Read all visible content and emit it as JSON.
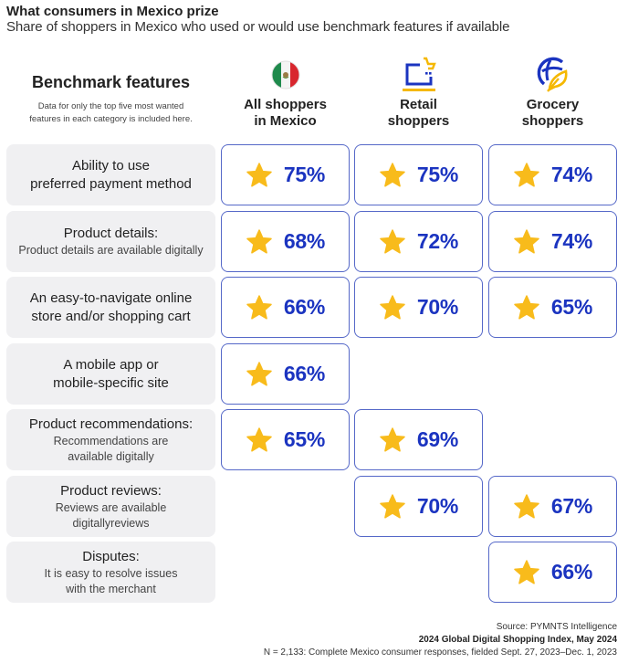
{
  "header": {
    "title": "What consumers in Mexico prize",
    "subtitle": "Share of shoppers in Mexico who used or would use benchmark features if available"
  },
  "benchmark": {
    "title": "Benchmark features",
    "note_line1": "Data for only the top five most wanted",
    "note_line2": "features in each category is included here."
  },
  "columns": [
    {
      "line1": "All shoppers",
      "line2": "in Mexico",
      "icon": "mexico-flag-icon"
    },
    {
      "line1": "Retail",
      "line2": "shoppers",
      "icon": "laptop-cart-icon"
    },
    {
      "line1": "Grocery",
      "line2": "shoppers",
      "icon": "globe-leaf-icon"
    }
  ],
  "rows": [
    {
      "main": [
        "Ability to use",
        "preferred payment method"
      ],
      "sub": [],
      "values": [
        "75%",
        "75%",
        "74%"
      ]
    },
    {
      "main": [
        "Product details:"
      ],
      "sub": [
        "Product details are available digitally"
      ],
      "values": [
        "68%",
        "72%",
        "74%"
      ]
    },
    {
      "main": [
        "An easy-to-navigate online",
        "store and/or shopping cart"
      ],
      "sub": [],
      "values": [
        "66%",
        "70%",
        "65%"
      ]
    },
    {
      "main": [
        "A mobile app or",
        "mobile-specific site"
      ],
      "sub": [],
      "values": [
        "66%",
        null,
        null
      ]
    },
    {
      "main": [
        "Product recommendations:"
      ],
      "sub": [
        "Recommendations are",
        "available digitally"
      ],
      "values": [
        "65%",
        "69%",
        null
      ]
    },
    {
      "main": [
        "Product reviews:"
      ],
      "sub": [
        "Reviews are available",
        "digitallyreviews"
      ],
      "values": [
        null,
        "70%",
        "67%"
      ]
    },
    {
      "main": [
        "Disputes:"
      ],
      "sub": [
        "It is easy to resolve issues",
        "with the merchant"
      ],
      "values": [
        null,
        null,
        "66%"
      ]
    }
  ],
  "footer": {
    "source": "Source: PYMNTS Intelligence",
    "report": "2024 Global Digital Shopping Index, May 2024",
    "sample": "N = 2,133: Complete Mexico consumer responses, fielded Sept. 27, 2023–Dec. 1, 2023"
  },
  "colors": {
    "value_text": "#1b34c0",
    "box_border": "#5568c8",
    "star": "#f8bb1b",
    "label_bg": "#f0f0f2"
  },
  "chart_data": {
    "type": "table",
    "title": "What consumers in Mexico prize",
    "subtitle": "Share of shoppers in Mexico who used or would use benchmark features if available",
    "columns": [
      "All shoppers in Mexico",
      "Retail shoppers",
      "Grocery shoppers"
    ],
    "rows": [
      "Ability to use preferred payment method",
      "Product details",
      "An easy-to-navigate online store and/or shopping cart",
      "A mobile app or mobile-specific site",
      "Product recommendations",
      "Product reviews",
      "Disputes"
    ],
    "series": [
      {
        "name": "All shoppers in Mexico",
        "values": [
          75,
          68,
          66,
          66,
          65,
          null,
          null
        ]
      },
      {
        "name": "Retail shoppers",
        "values": [
          75,
          72,
          70,
          null,
          69,
          70,
          null
        ]
      },
      {
        "name": "Grocery shoppers",
        "values": [
          74,
          74,
          65,
          null,
          null,
          67,
          66
        ]
      }
    ],
    "unit": "%"
  }
}
